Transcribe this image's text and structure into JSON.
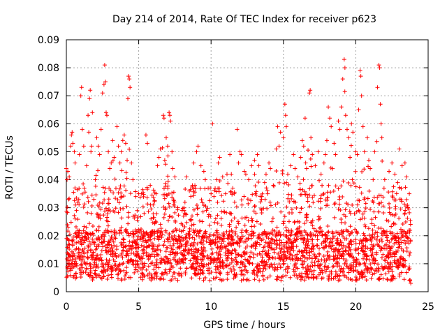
{
  "chart_data": {
    "type": "scatter",
    "title": "Day 214 of 2014, Rate Of TEC Index for receiver p623",
    "xlabel": "GPS time / hours",
    "ylabel": "ROTI / TECUs",
    "xlim": [
      0,
      25
    ],
    "ylim": [
      0,
      0.09
    ],
    "xticks": [
      0,
      5,
      10,
      15,
      20,
      25
    ],
    "yticks": [
      0,
      0.01,
      0.02,
      0.03,
      0.04,
      0.05,
      0.06,
      0.07,
      0.08,
      0.09
    ],
    "xtick_labels": [
      "0",
      "5",
      "10",
      "15",
      "20",
      "25"
    ],
    "ytick_labels": [
      "0",
      "0.01",
      "0.02",
      "0.03",
      "0.04",
      "0.05",
      "0.06",
      "0.07",
      "0.08",
      "0.09"
    ],
    "grid": true,
    "marker": "+",
    "color": "#ff0000",
    "data_x_range": [
      0,
      23.8
    ],
    "series": [
      {
        "name": "ROTI",
        "points": [
          [
            0.0,
            0.044
          ],
          [
            0.05,
            0.04
          ],
          [
            0.1,
            0.043
          ],
          [
            0.15,
            0.033
          ],
          [
            0.2,
            0.041
          ],
          [
            0.3,
            0.052
          ],
          [
            0.35,
            0.056
          ],
          [
            0.4,
            0.057
          ],
          [
            0.45,
            0.053
          ],
          [
            0.55,
            0.05
          ],
          [
            0.6,
            0.046
          ],
          [
            0.7,
            0.029
          ],
          [
            0.9,
            0.049
          ],
          [
            1.0,
            0.07
          ],
          [
            1.05,
            0.073
          ],
          [
            1.1,
            0.058
          ],
          [
            1.2,
            0.052
          ],
          [
            1.4,
            0.045
          ],
          [
            1.5,
            0.063
          ],
          [
            1.55,
            0.057
          ],
          [
            1.6,
            0.069
          ],
          [
            1.65,
            0.072
          ],
          [
            1.7,
            0.05
          ],
          [
            1.75,
            0.052
          ],
          [
            1.8,
            0.064
          ],
          [
            1.9,
            0.033
          ],
          [
            2.0,
            0.04
          ],
          [
            2.1,
            0.055
          ],
          [
            2.2,
            0.052
          ],
          [
            2.3,
            0.049
          ],
          [
            2.4,
            0.058
          ],
          [
            2.5,
            0.071
          ],
          [
            2.6,
            0.074
          ],
          [
            2.65,
            0.081
          ],
          [
            2.7,
            0.075
          ],
          [
            2.75,
            0.064
          ],
          [
            2.8,
            0.063
          ],
          [
            2.9,
            0.05
          ],
          [
            3.0,
            0.044
          ],
          [
            3.1,
            0.046
          ],
          [
            3.2,
            0.054
          ],
          [
            3.3,
            0.048
          ],
          [
            3.5,
            0.059
          ],
          [
            3.6,
            0.052
          ],
          [
            3.7,
            0.046
          ],
          [
            3.8,
            0.05
          ],
          [
            3.9,
            0.054
          ],
          [
            4.0,
            0.056
          ],
          [
            4.1,
            0.053
          ],
          [
            4.2,
            0.047
          ],
          [
            4.25,
            0.069
          ],
          [
            4.3,
            0.077
          ],
          [
            4.35,
            0.076
          ],
          [
            4.4,
            0.073
          ],
          [
            4.5,
            0.046
          ],
          [
            4.6,
            0.04
          ],
          [
            4.8,
            0.034
          ],
          [
            5.0,
            0.035
          ],
          [
            5.2,
            0.035
          ],
          [
            5.5,
            0.056
          ],
          [
            5.6,
            0.053
          ],
          [
            5.8,
            0.038
          ],
          [
            6.0,
            0.031
          ],
          [
            6.2,
            0.035
          ],
          [
            6.3,
            0.045
          ],
          [
            6.4,
            0.048
          ],
          [
            6.5,
            0.051
          ],
          [
            6.7,
            0.063
          ],
          [
            6.75,
            0.062
          ],
          [
            6.8,
            0.047
          ],
          [
            6.9,
            0.055
          ],
          [
            7.0,
            0.052
          ],
          [
            7.1,
            0.064
          ],
          [
            7.15,
            0.063
          ],
          [
            7.2,
            0.061
          ],
          [
            7.3,
            0.05
          ],
          [
            7.35,
            0.044
          ],
          [
            7.5,
            0.041
          ],
          [
            7.7,
            0.03
          ],
          [
            7.8,
            0.022
          ],
          [
            7.9,
            0.018
          ],
          [
            8.0,
            0.029
          ],
          [
            8.1,
            0.027
          ],
          [
            8.3,
            0.041
          ],
          [
            8.5,
            0.036
          ],
          [
            8.6,
            0.034
          ],
          [
            8.8,
            0.046
          ],
          [
            9.0,
            0.05
          ],
          [
            9.1,
            0.052
          ],
          [
            9.3,
            0.045
          ],
          [
            9.5,
            0.043
          ],
          [
            9.6,
            0.04
          ],
          [
            9.8,
            0.037
          ],
          [
            10.0,
            0.035
          ],
          [
            10.1,
            0.06
          ],
          [
            10.2,
            0.034
          ],
          [
            10.4,
            0.04
          ],
          [
            10.5,
            0.046
          ],
          [
            10.6,
            0.048
          ],
          [
            10.8,
            0.041
          ],
          [
            11.0,
            0.035
          ],
          [
            11.1,
            0.042
          ],
          [
            11.3,
            0.049
          ],
          [
            11.4,
            0.042
          ],
          [
            11.5,
            0.037
          ],
          [
            11.6,
            0.035
          ],
          [
            11.8,
            0.058
          ],
          [
            11.9,
            0.046
          ],
          [
            12.0,
            0.05
          ],
          [
            12.1,
            0.049
          ],
          [
            12.3,
            0.043
          ],
          [
            12.4,
            0.042
          ],
          [
            12.6,
            0.04
          ],
          [
            12.8,
            0.045
          ],
          [
            13.0,
            0.047
          ],
          [
            13.2,
            0.049
          ],
          [
            13.3,
            0.045
          ],
          [
            13.5,
            0.034
          ],
          [
            13.7,
            0.039
          ],
          [
            13.8,
            0.042
          ],
          [
            14.0,
            0.046
          ],
          [
            14.1,
            0.044
          ],
          [
            14.3,
            0.038
          ],
          [
            14.5,
            0.051
          ],
          [
            14.6,
            0.059
          ],
          [
            14.7,
            0.052
          ],
          [
            14.8,
            0.057
          ],
          [
            15.0,
            0.055
          ],
          [
            15.1,
            0.067
          ],
          [
            15.15,
            0.063
          ],
          [
            15.2,
            0.059
          ],
          [
            15.3,
            0.042
          ],
          [
            15.5,
            0.045
          ],
          [
            15.7,
            0.049
          ],
          [
            15.8,
            0.044
          ],
          [
            16.0,
            0.041
          ],
          [
            16.2,
            0.048
          ],
          [
            16.3,
            0.054
          ],
          [
            16.4,
            0.052
          ],
          [
            16.5,
            0.062
          ],
          [
            16.6,
            0.044
          ],
          [
            16.8,
            0.071
          ],
          [
            16.85,
            0.072
          ],
          [
            16.9,
            0.055
          ],
          [
            17.0,
            0.049
          ],
          [
            17.2,
            0.045
          ],
          [
            17.4,
            0.05
          ],
          [
            17.6,
            0.042
          ],
          [
            17.8,
            0.046
          ],
          [
            17.9,
            0.049
          ],
          [
            18.0,
            0.054
          ],
          [
            18.1,
            0.066
          ],
          [
            18.2,
            0.062
          ],
          [
            18.3,
            0.059
          ],
          [
            18.5,
            0.053
          ],
          [
            18.6,
            0.049
          ],
          [
            18.8,
            0.061
          ],
          [
            18.9,
            0.058
          ],
          [
            19.0,
            0.066
          ],
          [
            19.1,
            0.076
          ],
          [
            19.2,
            0.083
          ],
          [
            19.25,
            0.08
          ],
          [
            19.3,
            0.063
          ],
          [
            19.4,
            0.058
          ],
          [
            19.5,
            0.055
          ],
          [
            19.6,
            0.048
          ],
          [
            19.7,
            0.06
          ],
          [
            19.8,
            0.057
          ],
          [
            20.0,
            0.05
          ],
          [
            20.1,
            0.049
          ],
          [
            20.2,
            0.065
          ],
          [
            20.3,
            0.079
          ],
          [
            20.35,
            0.077
          ],
          [
            20.4,
            0.07
          ],
          [
            20.5,
            0.059
          ],
          [
            20.6,
            0.05
          ],
          [
            20.8,
            0.055
          ],
          [
            20.9,
            0.047
          ],
          [
            21.0,
            0.044
          ],
          [
            21.2,
            0.04
          ],
          [
            21.3,
            0.05
          ],
          [
            21.5,
            0.073
          ],
          [
            21.6,
            0.081
          ],
          [
            21.65,
            0.08
          ],
          [
            21.7,
            0.067
          ],
          [
            21.75,
            0.06
          ],
          [
            21.8,
            0.055
          ],
          [
            22.0,
            0.04
          ],
          [
            22.3,
            0.043
          ],
          [
            22.5,
            0.046
          ],
          [
            22.7,
            0.042
          ],
          [
            22.9,
            0.039
          ],
          [
            23.0,
            0.051
          ],
          [
            23.2,
            0.045
          ],
          [
            23.4,
            0.046
          ],
          [
            23.5,
            0.041
          ],
          [
            23.6,
            0.03
          ],
          [
            23.7,
            0.035
          ],
          [
            23.75,
            0.004
          ],
          [
            23.8,
            0.003
          ]
        ]
      }
    ]
  }
}
